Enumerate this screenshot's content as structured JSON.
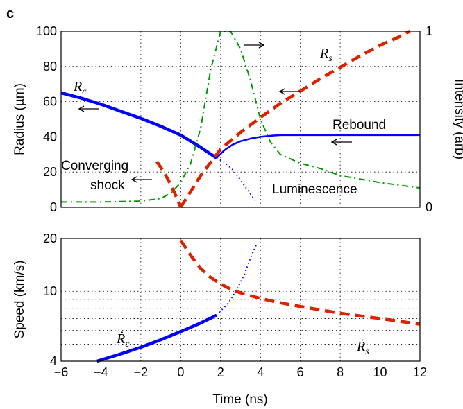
{
  "panel_label": "c",
  "chart_data": [
    {
      "type": "line",
      "panel": "top",
      "xlabel": "",
      "ylabel": "Radius (µm)",
      "y2label": "Intensity (arb)",
      "xlim": [
        -6,
        12
      ],
      "ylim": [
        0,
        100
      ],
      "y2lim": [
        0,
        1
      ],
      "xticks": [
        -6,
        -4,
        -2,
        0,
        2,
        4,
        6,
        8,
        10,
        12
      ],
      "yticks": [
        0,
        20,
        40,
        60,
        80,
        100
      ],
      "y2ticks": [
        "0",
        "1"
      ],
      "grid": true,
      "series": [
        {
          "id": "Rc_solid",
          "label": "R",
          "label_sub": "c",
          "color": "#0000ff",
          "style": "solid-thick",
          "x": [
            -6,
            -5,
            -4,
            -3,
            -2,
            -1,
            0,
            1,
            1.8
          ],
          "y": [
            65,
            62,
            58.5,
            54.5,
            50.5,
            46,
            41,
            34,
            28
          ]
        },
        {
          "id": "Rc_dotted",
          "color": "#0000ff",
          "style": "dotted",
          "x": [
            1.8,
            2.2,
            2.6,
            3.0,
            3.4,
            3.8
          ],
          "y": [
            28,
            25.5,
            21.5,
            15.5,
            9,
            3
          ]
        },
        {
          "id": "rebound",
          "label": "Rebound",
          "color": "#0000ff",
          "style": "solid",
          "x": [
            1.8,
            2.2,
            2.6,
            3,
            3.5,
            4,
            4.5,
            5,
            6,
            8,
            10,
            12
          ],
          "y": [
            28,
            32.5,
            35.5,
            37.5,
            39,
            40,
            40.6,
            41,
            41,
            41,
            41,
            41
          ]
        },
        {
          "id": "Rs_pre",
          "color": "#dd2200",
          "style": "dashed",
          "x": [
            -1.2,
            -0.9,
            -0.6,
            -0.3,
            0
          ],
          "y": [
            26,
            21,
            15,
            8,
            0
          ]
        },
        {
          "id": "Rs",
          "label": "R",
          "label_sub": "s",
          "color": "#dd2200",
          "style": "dashed",
          "x": [
            0,
            1,
            2,
            3,
            4,
            5,
            6,
            7,
            8,
            9,
            10,
            11,
            11.5
          ],
          "y": [
            0,
            18,
            33,
            42.5,
            51,
            59,
            66,
            73,
            79.5,
            86,
            92,
            97,
            100
          ]
        },
        {
          "id": "luminescence",
          "label": "Luminescence",
          "color": "#009900",
          "style": "dashdot",
          "axis": "right",
          "x": [
            -6,
            -4,
            -2,
            -1,
            -0.5,
            0,
            0.5,
            1,
            1.5,
            2,
            2.5,
            3,
            3.5,
            4,
            4.5,
            5,
            6,
            7,
            8,
            10,
            12
          ],
          "y": [
            0.03,
            0.03,
            0.035,
            0.05,
            0.08,
            0.14,
            0.25,
            0.45,
            0.78,
            1.0,
            1.0,
            0.9,
            0.72,
            0.5,
            0.37,
            0.3,
            0.25,
            0.22,
            0.18,
            0.14,
            0.11
          ]
        }
      ],
      "annotations": [
        {
          "text": "Converging",
          "x": -3.3,
          "y": 27
        },
        {
          "text": "shock",
          "x": -2.3,
          "y": 14
        }
      ]
    },
    {
      "type": "line",
      "panel": "bottom",
      "xlabel": "Time (ns)",
      "ylabel": "Speed (km/s)",
      "scale": "log",
      "xlim": [
        -6,
        12
      ],
      "ylim": [
        4,
        20
      ],
      "xticks": [
        -6,
        -4,
        -2,
        0,
        2,
        4,
        6,
        8,
        10,
        12
      ],
      "yticks": [
        4,
        10,
        20
      ],
      "ytick_labels": [
        "4",
        "10",
        "20"
      ],
      "ygrid": [
        4,
        5,
        6,
        7,
        8,
        9,
        10,
        20
      ],
      "grid": true,
      "series": [
        {
          "id": "Rc_dot_solid",
          "label": "Ṙ",
          "label_sub": "c",
          "color": "#0000ff",
          "style": "solid-thick",
          "x": [
            -4.2,
            -3,
            -2,
            -1,
            0,
            1,
            1.8
          ],
          "y": [
            4,
            4.4,
            4.8,
            5.3,
            5.9,
            6.6,
            7.3
          ]
        },
        {
          "id": "Rc_dot_dotted",
          "color": "#0000ff",
          "style": "dotted",
          "x": [
            1.8,
            2.4,
            2.8,
            3.2,
            3.5,
            3.8
          ],
          "y": [
            7.3,
            8.6,
            10.2,
            12.5,
            15.5,
            18.5
          ]
        },
        {
          "id": "Rs_dot",
          "label": "Ṙ",
          "label_sub": "s",
          "color": "#dd2200",
          "style": "dashed",
          "x": [
            0,
            0.5,
            1,
            1.5,
            2,
            2.5,
            3,
            4,
            5,
            6,
            8,
            10,
            12
          ],
          "y": [
            19.5,
            16,
            13.5,
            12,
            11,
            10.3,
            9.8,
            9.1,
            8.6,
            8.2,
            7.5,
            7.0,
            6.5
          ]
        }
      ]
    }
  ]
}
